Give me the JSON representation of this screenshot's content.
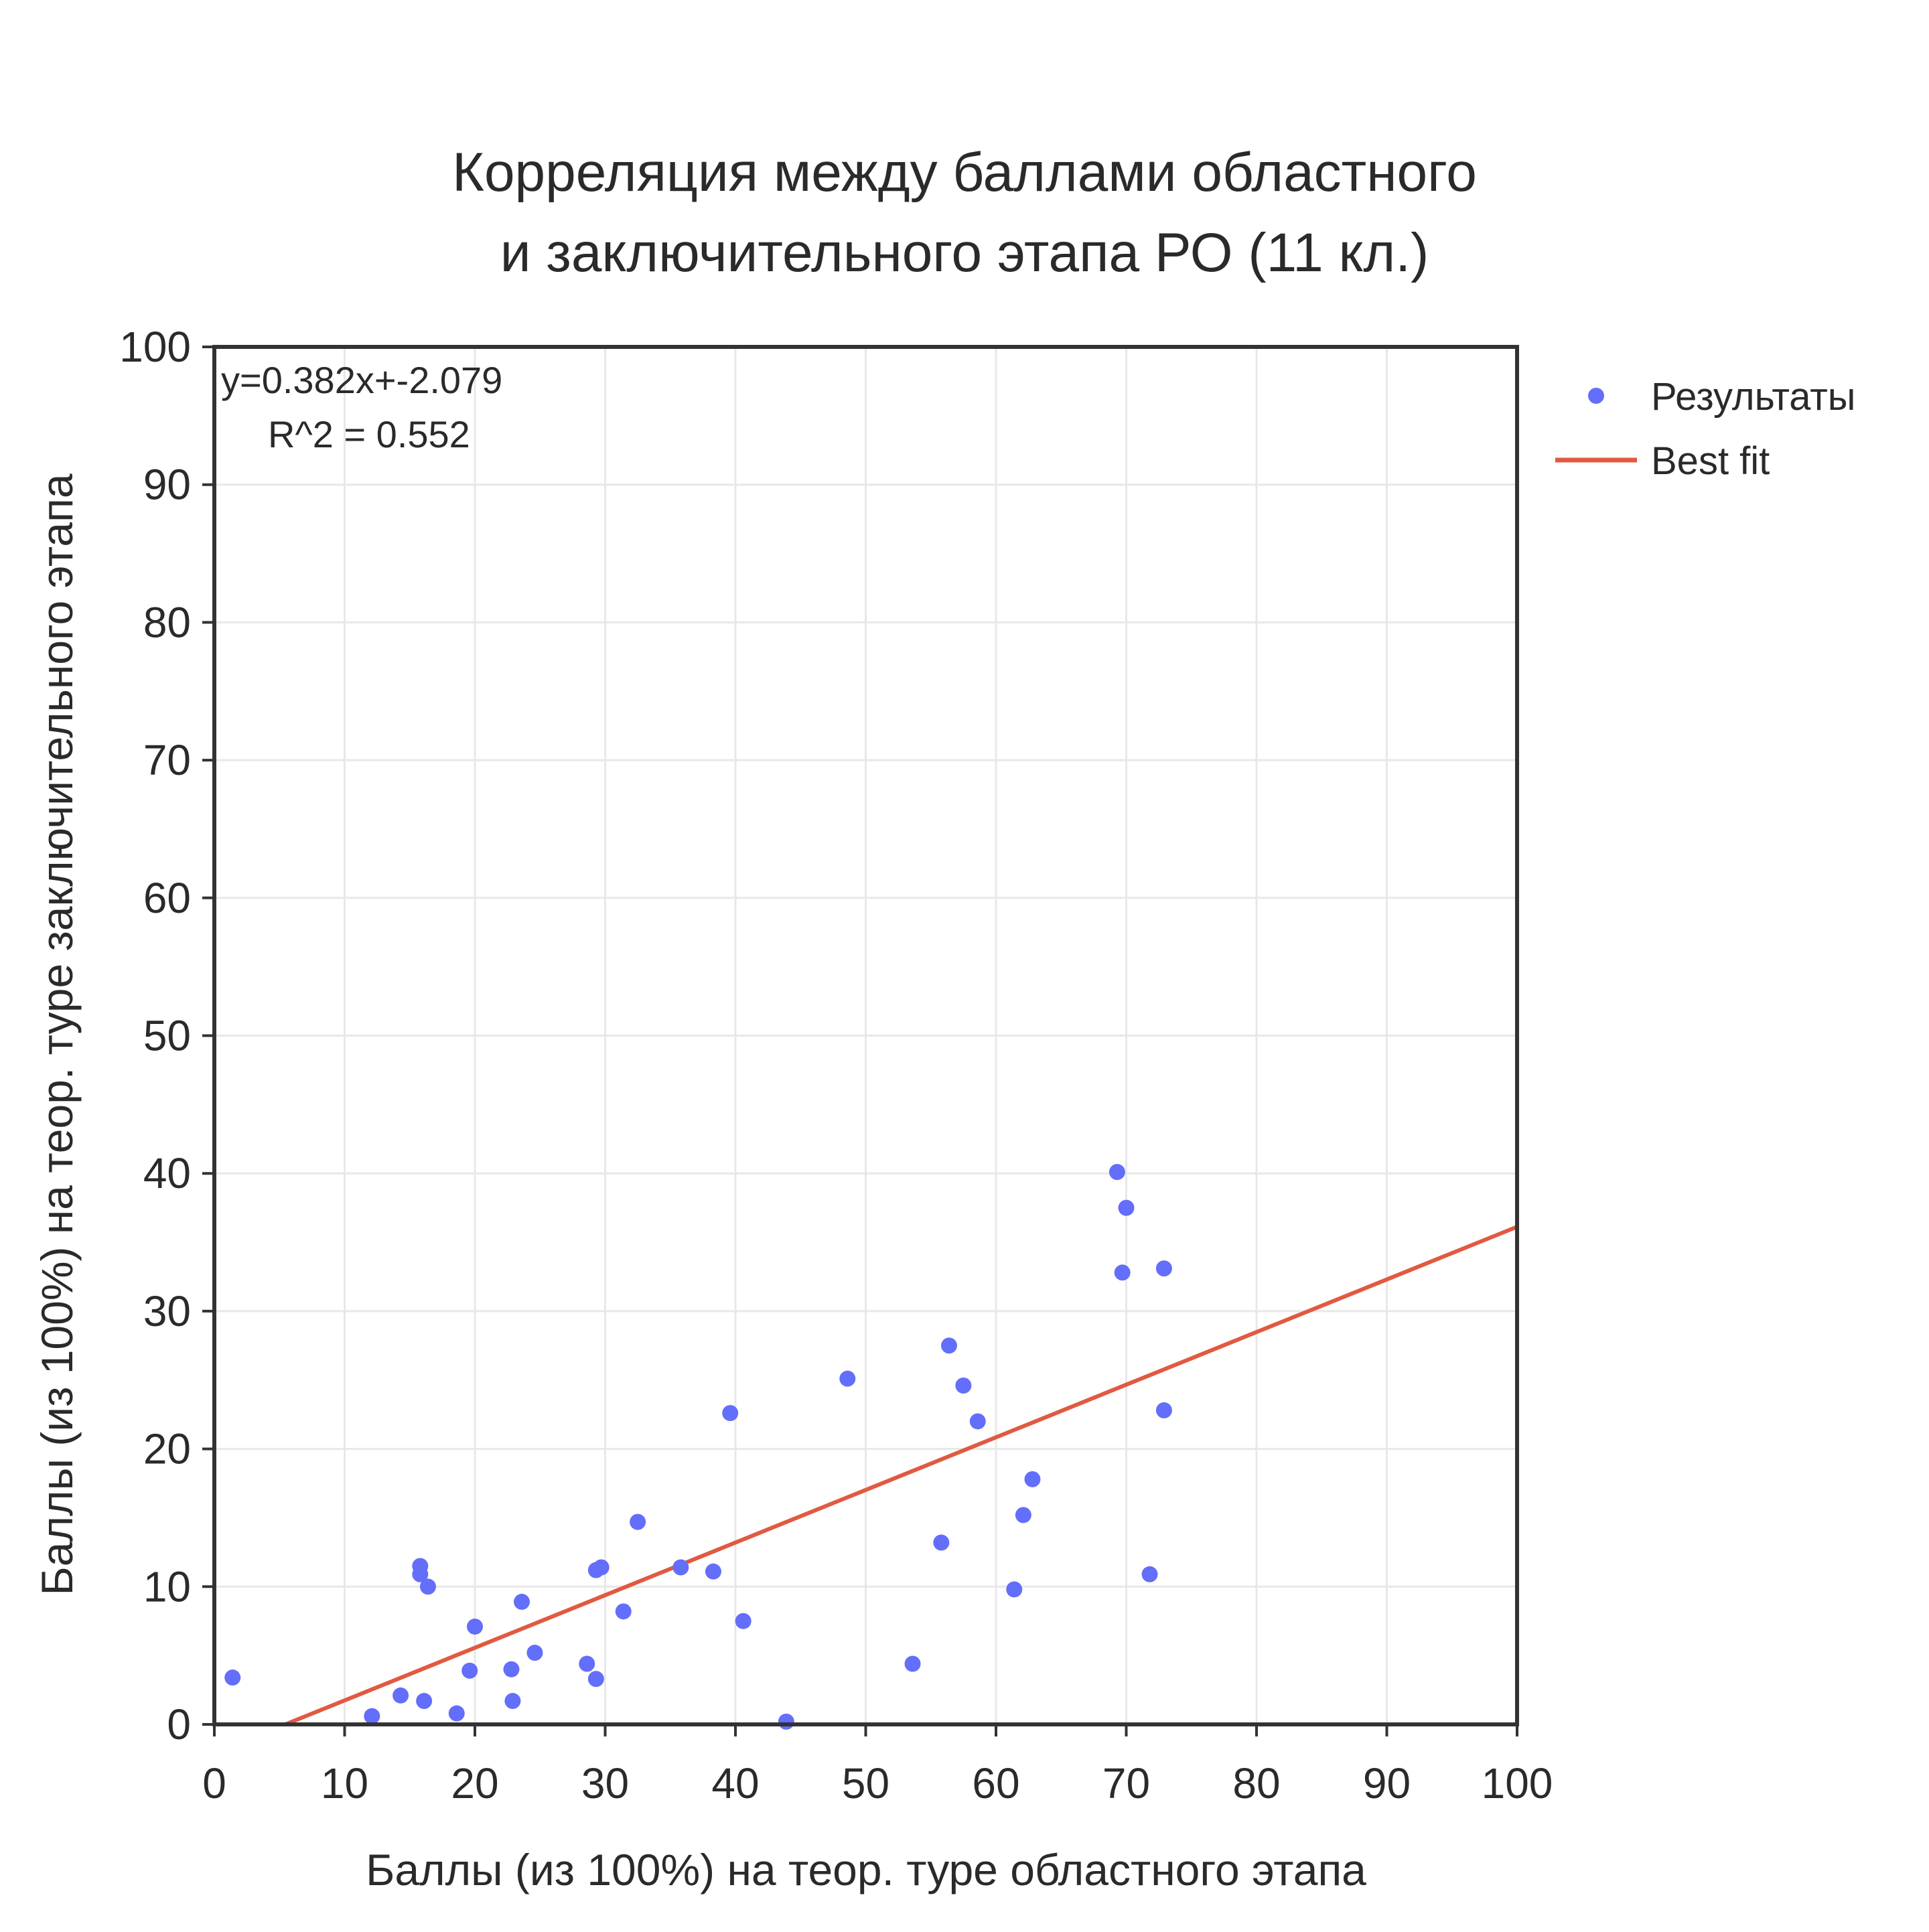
{
  "chart_data": {
    "type": "scatter",
    "title": "Корреляция между баллами областного и заключительного этапа РО (11 кл.)",
    "title_lines": [
      "Корреляция между баллами областного",
      "и заключительного этапа РО (11 кл.)"
    ],
    "xlabel": "Баллы (из 100%) на теор. туре областного этапа",
    "ylabel": "Баллы (из 100%) на теор. туре заключительного этапа",
    "xlim": [
      0,
      100
    ],
    "ylim": [
      0,
      100
    ],
    "x_ticks": [
      0,
      10,
      20,
      30,
      40,
      50,
      60,
      70,
      80,
      90,
      100
    ],
    "y_ticks": [
      0,
      10,
      20,
      30,
      40,
      50,
      60,
      70,
      80,
      90,
      100
    ],
    "grid": true,
    "legend_position": "top-right outside",
    "annotation": {
      "equation": "y=0.382x+-2.079",
      "r_squared": "R^2 = 0.552"
    },
    "series": [
      {
        "name": "Результаты",
        "kind": "scatter",
        "color": "#636efa",
        "points": [
          [
            1.4,
            3.4
          ],
          [
            12.1,
            0.6
          ],
          [
            14.3,
            2.1
          ],
          [
            15.8,
            11.5
          ],
          [
            15.8,
            10.9
          ],
          [
            16.1,
            1.7
          ],
          [
            16.4,
            10.0
          ],
          [
            18.6,
            0.8
          ],
          [
            19.6,
            3.9
          ],
          [
            20.0,
            7.1
          ],
          [
            22.8,
            4.0
          ],
          [
            22.9,
            1.7
          ],
          [
            23.6,
            8.9
          ],
          [
            24.6,
            5.2
          ],
          [
            28.6,
            4.4
          ],
          [
            29.3,
            3.3
          ],
          [
            29.3,
            11.2
          ],
          [
            29.7,
            11.4
          ],
          [
            31.4,
            8.2
          ],
          [
            32.5,
            14.7
          ],
          [
            35.8,
            11.4
          ],
          [
            38.3,
            11.1
          ],
          [
            39.6,
            22.6
          ],
          [
            40.6,
            7.5
          ],
          [
            43.9,
            0.2
          ],
          [
            48.6,
            25.1
          ],
          [
            53.6,
            4.4
          ],
          [
            55.8,
            13.2
          ],
          [
            56.4,
            27.5
          ],
          [
            57.5,
            24.6
          ],
          [
            58.6,
            22.0
          ],
          [
            61.4,
            9.8
          ],
          [
            62.1,
            15.2
          ],
          [
            62.8,
            17.8
          ],
          [
            69.3,
            40.1
          ],
          [
            69.7,
            32.8
          ],
          [
            70.0,
            37.5
          ],
          [
            71.8,
            10.9
          ],
          [
            72.9,
            33.1
          ],
          [
            72.9,
            22.8
          ]
        ]
      },
      {
        "name": "Best fit",
        "kind": "line",
        "color": "#e05a41",
        "slope": 0.382,
        "intercept": -2.079
      }
    ]
  }
}
